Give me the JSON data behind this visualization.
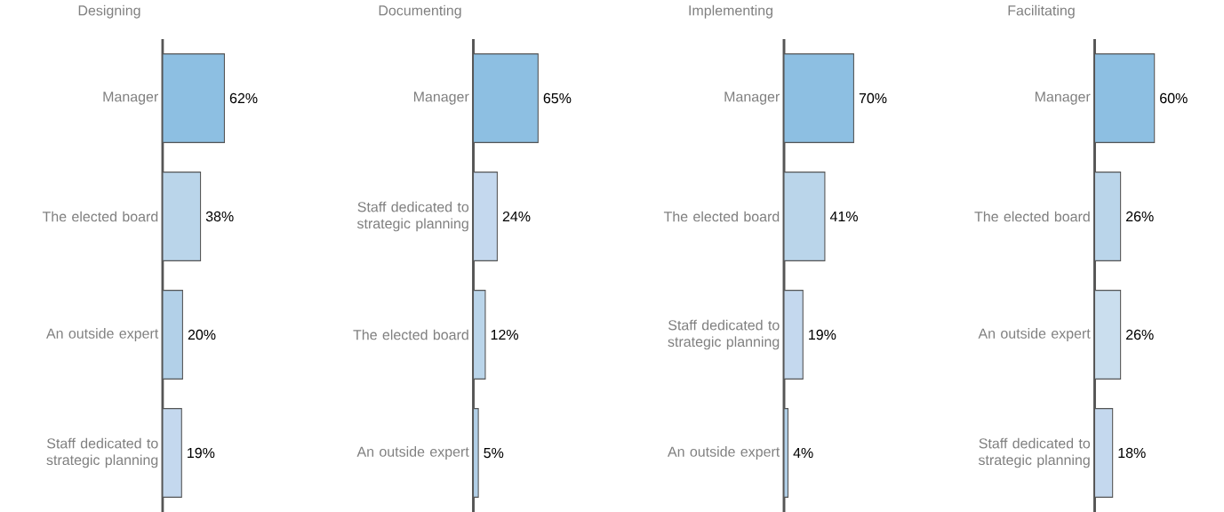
{
  "chart_data": [
    {
      "type": "bar",
      "orientation": "horizontal",
      "title": "Designing",
      "categories": [
        "Manager",
        "The elected board",
        "An outside expert",
        "Staff dedicated to strategic planning"
      ],
      "values": [
        62,
        38,
        20,
        19
      ],
      "colors": [
        "#8dbfe2",
        "#bad5ea",
        "#b2d0e8",
        "#c4d8ee"
      ],
      "value_labels": [
        "62%",
        "38%",
        "20%",
        "19%"
      ]
    },
    {
      "type": "bar",
      "orientation": "horizontal",
      "title": "Documenting",
      "categories": [
        "Manager",
        "Staff dedicated to strategic planning",
        "The elected board",
        "An outside expert"
      ],
      "values": [
        65,
        24,
        12,
        5
      ],
      "colors": [
        "#8dbfe2",
        "#c4d8ee",
        "#bad5ea",
        "#b2d0e8"
      ],
      "value_labels": [
        "65%",
        "24%",
        "12%",
        "5%"
      ]
    },
    {
      "type": "bar",
      "orientation": "horizontal",
      "title": "Implementing",
      "categories": [
        "Manager",
        "The elected board",
        "Staff dedicated to strategic planning",
        "An outside expert"
      ],
      "values": [
        70,
        41,
        19,
        4
      ],
      "colors": [
        "#8dbfe2",
        "#bad5ea",
        "#c4d8ee",
        "#b2d0e8"
      ],
      "value_labels": [
        "70%",
        "41%",
        "19%",
        "4%"
      ]
    },
    {
      "type": "bar",
      "orientation": "horizontal",
      "title": "Facilitating",
      "categories": [
        "Manager",
        "The elected board",
        "An outside expert",
        "Staff dedicated to strategic planning"
      ],
      "values": [
        60,
        26,
        26,
        18
      ],
      "colors": [
        "#8dbfe2",
        "#bad5ea",
        "#cadeee",
        "#c4d8ee"
      ],
      "value_labels": [
        "60%",
        "26%",
        "26%",
        "18%"
      ]
    }
  ]
}
